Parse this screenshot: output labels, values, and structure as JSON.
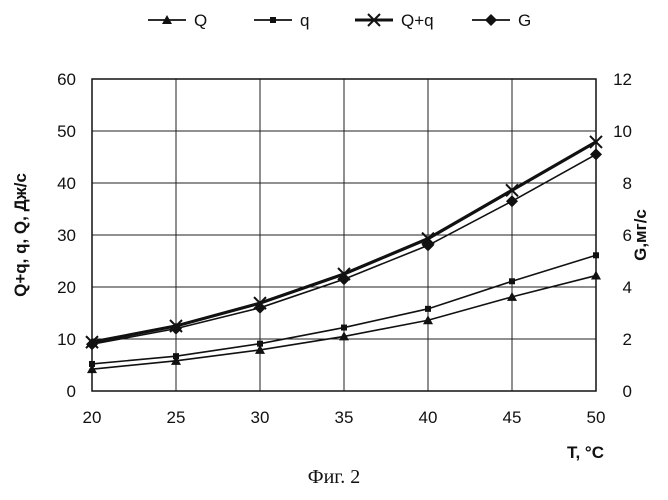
{
  "chart_data": {
    "type": "line",
    "x": [
      20,
      25,
      30,
      35,
      40,
      45,
      50
    ],
    "xlabel": "T, °C",
    "xlim": [
      20,
      50
    ],
    "x_ticks": [
      "20",
      "25",
      "30",
      "35",
      "40",
      "45",
      "50"
    ],
    "ylabel": "Q+q, q, Q, Дж/с",
    "ylim": [
      0,
      60
    ],
    "y_ticks": [
      "0",
      "10",
      "20",
      "30",
      "40",
      "50",
      "60"
    ],
    "y2label": "G,мг/с",
    "y2lim": [
      0,
      12
    ],
    "y2_ticks": [
      "0",
      "2",
      "4",
      "6",
      "8",
      "10",
      "12"
    ],
    "grid": true,
    "legend_position": "top",
    "series": [
      {
        "name": "Q",
        "axis": "left",
        "marker": "triangle",
        "values": [
          4.2,
          5.8,
          7.9,
          10.5,
          13.6,
          18.1,
          22.2
        ]
      },
      {
        "name": "q",
        "axis": "left",
        "marker": "square",
        "values": [
          5.2,
          6.7,
          9.1,
          12.2,
          15.8,
          21.1,
          26.1
        ]
      },
      {
        "name": "Q+q",
        "axis": "left",
        "marker": "x",
        "values": [
          9.4,
          12.5,
          16.9,
          22.5,
          29.3,
          38.6,
          47.9
        ]
      },
      {
        "name": "G",
        "axis": "right",
        "marker": "diamond",
        "values": [
          1.8,
          2.4,
          3.2,
          4.3,
          5.6,
          7.3,
          9.1
        ]
      }
    ]
  },
  "caption": "Фиг. 2"
}
